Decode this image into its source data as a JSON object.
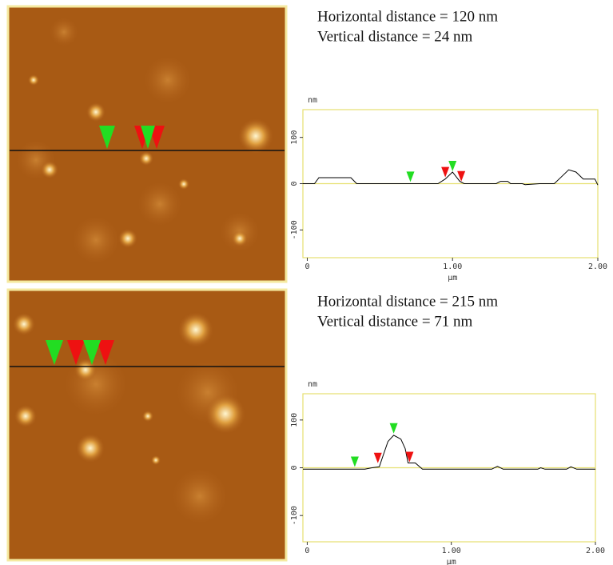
{
  "chart_data": [
    {
      "type": "line",
      "annotations": [
        "Horizontal distance = 120 nm",
        "Vertical distance = 24 nm"
      ],
      "y_label": "nm",
      "x_label": "µm",
      "xlim": [
        -0.03,
        2.0
      ],
      "ylim": [
        -160,
        160
      ],
      "xticks": [
        0,
        {
          "value": 1,
          "label": "1.00"
        },
        {
          "value": 2,
          "label": "2.00"
        }
      ],
      "yticks": [
        100,
        0,
        -100
      ],
      "color": "#000000",
      "frame_color": "#e6e070",
      "x": [
        -0.03,
        0.05,
        0.08,
        0.3,
        0.34,
        0.9,
        0.95,
        1.0,
        1.05,
        1.08,
        1.3,
        1.33,
        1.38,
        1.4,
        1.48,
        1.5,
        1.6,
        1.7,
        1.75,
        1.8,
        1.85,
        1.9,
        1.98,
        2.0
      ],
      "values": [
        0,
        0,
        13,
        13,
        0,
        0,
        10,
        25,
        5,
        0,
        0,
        5,
        5,
        0,
        0,
        -2,
        0,
        0,
        15,
        30,
        25,
        10,
        10,
        -3
      ],
      "cursors": [
        {
          "x": 0.71,
          "y": 2,
          "color": "#22dd22"
        },
        {
          "x": 0.95,
          "y": 12,
          "color": "#ee1111"
        },
        {
          "x": 1.0,
          "y": 25,
          "color": "#22dd22"
        },
        {
          "x": 1.06,
          "y": 3,
          "color": "#ee1111"
        }
      ]
    },
    {
      "type": "line",
      "annotations": [
        "Horizontal distance = 215 nm",
        "Vertical distance = 71 nm"
      ],
      "y_label": "nm",
      "x_label": "µm",
      "xlim": [
        -0.03,
        2.0
      ],
      "ylim": [
        -155,
        155
      ],
      "xticks": [
        0,
        {
          "value": 1,
          "label": "1.00"
        },
        {
          "value": 2,
          "label": "2.00"
        }
      ],
      "yticks": [
        100,
        0,
        -100
      ],
      "color": "#000000",
      "frame_color": "#e6e070",
      "x": [
        -0.03,
        0.4,
        0.45,
        0.5,
        0.52,
        0.56,
        0.6,
        0.65,
        0.68,
        0.7,
        0.75,
        0.8,
        1.28,
        1.32,
        1.36,
        1.6,
        1.62,
        1.65,
        1.8,
        1.83,
        1.87,
        2.0
      ],
      "values": [
        -3,
        -3,
        0,
        2,
        20,
        55,
        68,
        60,
        40,
        10,
        10,
        -3,
        -3,
        3,
        -3,
        -3,
        0,
        -3,
        -3,
        2,
        -3,
        -3
      ],
      "cursors": [
        {
          "x": 0.33,
          "y": 0,
          "color": "#22dd22"
        },
        {
          "x": 0.49,
          "y": 8,
          "color": "#ee1111"
        },
        {
          "x": 0.6,
          "y": 70,
          "color": "#22dd22"
        },
        {
          "x": 0.71,
          "y": 10,
          "color": "#ee1111"
        }
      ]
    }
  ]
}
